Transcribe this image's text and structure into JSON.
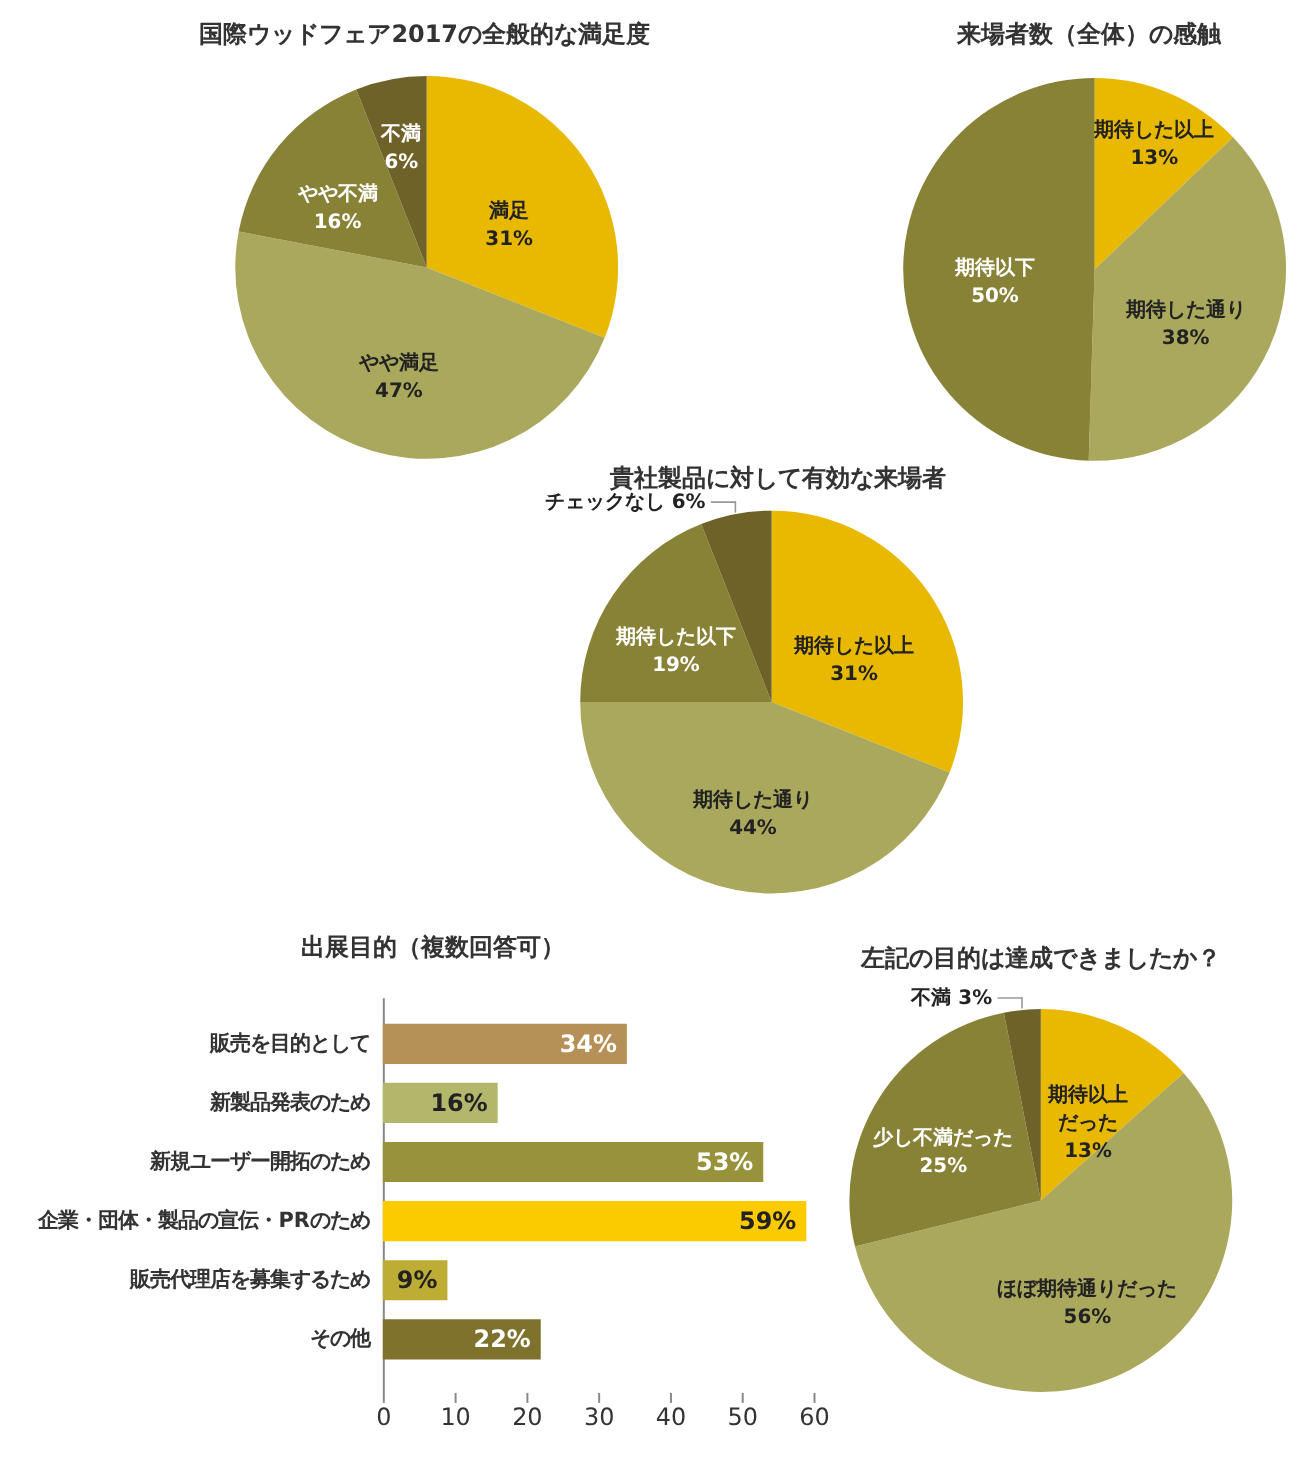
{
  "chart_data": [
    {
      "type": "pie",
      "title": "国際ウッドフェア2017の全般的な満足度",
      "categories": [
        "満足",
        "やや満足",
        "やや不満",
        "不満"
      ],
      "values": [
        31,
        47,
        16,
        6
      ],
      "value_labels": [
        "31%",
        "47%",
        "16%",
        "6%"
      ],
      "colors": [
        "#e8b900",
        "#a9a85c",
        "#888236",
        "#6f6229"
      ]
    },
    {
      "type": "pie",
      "title": "来場者数（全体）の感触",
      "categories": [
        "期待した以上",
        "期待した通り",
        "期待以下"
      ],
      "values": [
        13,
        38,
        50
      ],
      "value_labels": [
        "13%",
        "38%",
        "50%"
      ],
      "colors": [
        "#e8b900",
        "#a9a85c",
        "#888236"
      ]
    },
    {
      "type": "pie",
      "title": "貴社製品に対して有効な来場者",
      "categories": [
        "期待した以上",
        "期待した通り",
        "期待した以下",
        "チェックなし"
      ],
      "values": [
        31,
        44,
        19,
        6
      ],
      "value_labels": [
        "31%",
        "44%",
        "19%",
        "6%"
      ],
      "colors": [
        "#e8b900",
        "#a9a85c",
        "#888236",
        "#6f6229"
      ]
    },
    {
      "type": "bar",
      "orientation": "horizontal",
      "title": "出展目的（複数回答可）",
      "categories": [
        "販売を目的として",
        "新製品発表のため",
        "新規ユーザー開拓のため",
        "企業・団体・製品の宣伝・PRのため",
        "販売代理店を募集するため",
        "その他"
      ],
      "values": [
        34,
        16,
        53,
        59,
        9,
        22
      ],
      "value_labels": [
        "34%",
        "16%",
        "53%",
        "59%",
        "9%",
        "22%"
      ],
      "colors": [
        "#b59157",
        "#b3b76b",
        "#98923d",
        "#fbcb00",
        "#bead35",
        "#7e722d"
      ],
      "xlim": [
        0,
        60
      ],
      "xticks": [
        0,
        10,
        20,
        30,
        40,
        50,
        60
      ]
    },
    {
      "type": "pie",
      "title": "左記の目的は達成できましたか？",
      "categories": [
        "期待以上だった",
        "ほぼ期待通りだった",
        "少し不満だった",
        "不満"
      ],
      "values": [
        13,
        56,
        25,
        3
      ],
      "value_labels": [
        "13%",
        "56%",
        "25%",
        "3%"
      ],
      "colors": [
        "#e8b900",
        "#a9a85c",
        "#888236",
        "#6f6229"
      ]
    }
  ]
}
